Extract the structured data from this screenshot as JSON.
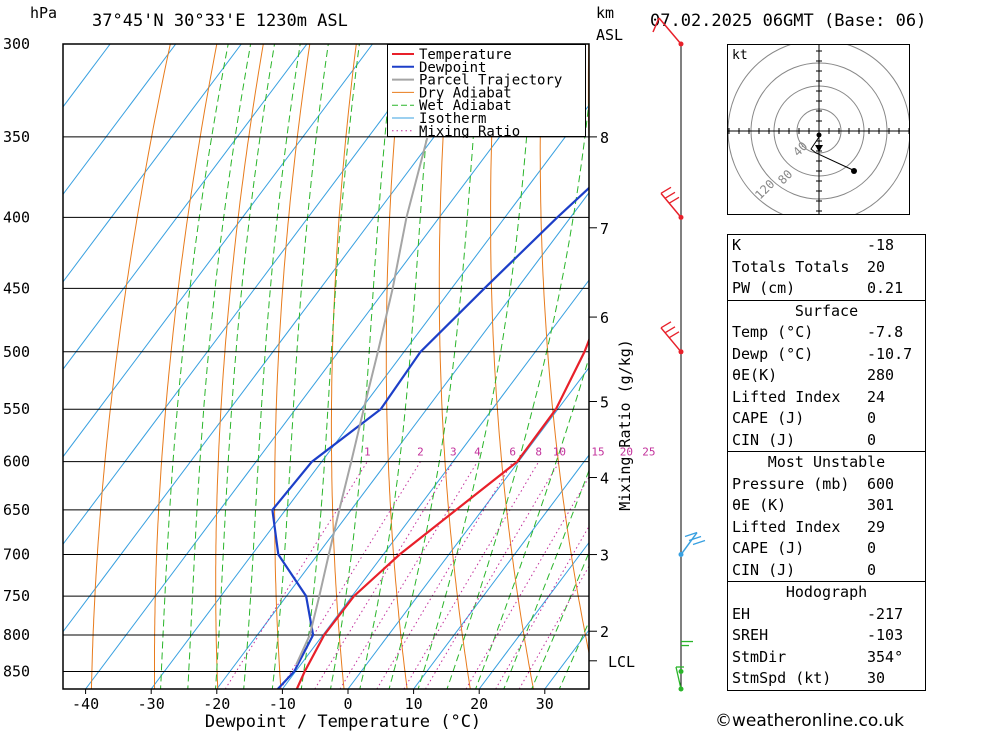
{
  "header": {
    "unit_left": "hPa",
    "location": "37°45'N 30°33'E 1230m ASL",
    "unit_km": "km",
    "unit_asl": "ASL",
    "datetime": "07.02.2025 06GMT (Base: 06)"
  },
  "chart_data": {
    "type": "line",
    "xlabel": "Dewpoint / Temperature (°C)",
    "ylabel": "hPa",
    "y2label": "Mixing Ratio (g/kg)",
    "xlim": [
      -44,
      36
    ],
    "ylim": [
      300,
      875
    ],
    "y_scale": "log",
    "x_ticks": [
      -40,
      -30,
      -20,
      -10,
      0,
      10,
      20,
      30
    ],
    "y_ticks": [
      300,
      350,
      400,
      450,
      500,
      550,
      600,
      650,
      700,
      750,
      800,
      850
    ],
    "km_ticks": [
      {
        "km": "8",
        "p": 350
      },
      {
        "km": "7",
        "p": 407
      },
      {
        "km": "6",
        "p": 472
      },
      {
        "km": "5",
        "p": 543
      },
      {
        "km": "4",
        "p": 616
      },
      {
        "km": "3",
        "p": 700
      },
      {
        "km": "2",
        "p": 795
      },
      {
        "km": "LCL",
        "p": 835
      }
    ],
    "mixing_ratio_labels": [
      "1",
      "2",
      "3",
      "4",
      "6",
      "8",
      "10",
      "15",
      "20",
      "25"
    ],
    "series": [
      {
        "name": "Temperature",
        "color": "#e8202a",
        "points": [
          [
            -7.8,
            875
          ],
          [
            -8.6,
            850
          ],
          [
            -9.8,
            800
          ],
          [
            -9.7,
            750
          ],
          [
            -7.5,
            700
          ],
          [
            -4,
            650
          ],
          [
            -0.2,
            600
          ],
          [
            -0.3,
            550
          ],
          [
            -2.5,
            500
          ],
          [
            -6,
            450
          ],
          [
            -9.5,
            400
          ],
          [
            -10.5,
            350
          ],
          [
            -11,
            300
          ]
        ]
      },
      {
        "name": "Dewpoint",
        "color": "#1d3fc8",
        "points": [
          [
            -10.7,
            875
          ],
          [
            -10.2,
            850
          ],
          [
            -11.5,
            800
          ],
          [
            -17,
            750
          ],
          [
            -26,
            700
          ],
          [
            -32,
            650
          ],
          [
            -31.5,
            600
          ],
          [
            -27,
            550
          ],
          [
            -27.5,
            500
          ],
          [
            -25,
            450
          ],
          [
            -22,
            400
          ],
          [
            -18,
            350
          ],
          [
            -12.5,
            300
          ]
        ]
      },
      {
        "name": "Parcel Trajectory",
        "color": "#a5a5a5",
        "points": [
          [
            -10.7,
            840
          ],
          [
            -12,
            800
          ],
          [
            -15,
            750
          ],
          [
            -18.3,
            700
          ],
          [
            -21.8,
            650
          ],
          [
            -25.5,
            600
          ],
          [
            -29.6,
            550
          ],
          [
            -34,
            500
          ],
          [
            -39,
            450
          ],
          [
            -45,
            400
          ],
          [
            -51,
            350
          ],
          [
            -58,
            300
          ]
        ]
      }
    ],
    "legend": [
      "Temperature",
      "Dewpoint",
      "Parcel Trajectory",
      "Dry Adiabat",
      "Wet Adiabat",
      "Isotherm",
      "Mixing Ratio"
    ],
    "legend_placement": "top-right",
    "background_colors": {
      "dry_adiabat": "#e87b1c",
      "wet_adiabat": "#2ab52a",
      "isotherm": "#38a0e0",
      "mixing_ratio": "#c2309b"
    }
  },
  "wind_profile": {
    "levels": [
      {
        "p": 300,
        "color": "#e8202a"
      },
      {
        "p": 400,
        "color": "#e8202a"
      },
      {
        "p": 500,
        "color": "#e8202a"
      },
      {
        "p": 700,
        "color": "#38a0e0"
      },
      {
        "p": 850,
        "color": "#2ab52a"
      },
      {
        "p": 875,
        "color": "#2ab52a"
      }
    ]
  },
  "hodograph": {
    "unit": "kt",
    "ring_labels": [
      "40",
      "80",
      "120"
    ]
  },
  "indices": {
    "top": [
      {
        "k": "K",
        "v": "-18"
      },
      {
        "k": "Totals Totals",
        "v": "20"
      },
      {
        "k": "PW (cm)",
        "v": "0.21"
      }
    ],
    "surface": {
      "title": "Surface",
      "rows": [
        {
          "k": "Temp (°C)",
          "v": "-7.8"
        },
        {
          "k": "Dewp (°C)",
          "v": "-10.7"
        },
        {
          "k": "θE(K)",
          "v": "280"
        },
        {
          "k": "Lifted Index",
          "v": "24"
        },
        {
          "k": "CAPE (J)",
          "v": "0"
        },
        {
          "k": "CIN (J)",
          "v": "0"
        }
      ]
    },
    "most_unstable": {
      "title": "Most Unstable",
      "rows": [
        {
          "k": "Pressure (mb)",
          "v": "600"
        },
        {
          "k": "θE (K)",
          "v": "301"
        },
        {
          "k": "Lifted Index",
          "v": "29"
        },
        {
          "k": "CAPE (J)",
          "v": "0"
        },
        {
          "k": "CIN (J)",
          "v": "0"
        }
      ]
    },
    "hodograph": {
      "title": "Hodograph",
      "rows": [
        {
          "k": "EH",
          "v": "-217"
        },
        {
          "k": "SREH",
          "v": "-103"
        },
        {
          "k": "StmDir",
          "v": "354°"
        },
        {
          "k": "StmSpd (kt)",
          "v": "30"
        }
      ]
    }
  },
  "footer": {
    "copyright": "©weatheronline.co.uk"
  }
}
